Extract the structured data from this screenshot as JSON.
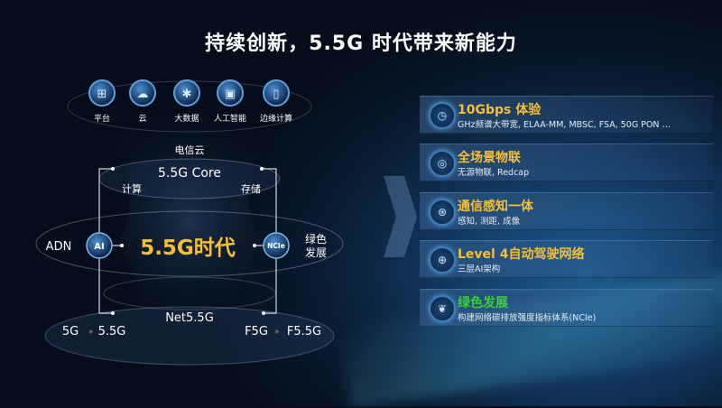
{
  "title": "持续创新，5.5G 时代带来新能力",
  "colors": {
    "accent_yellow": "#f5c030",
    "green": "#3ccf3c",
    "background": "#0a1a30"
  },
  "top_icons": [
    {
      "label": "平台",
      "icon": "platform-network-icon"
    },
    {
      "label": "云",
      "icon": "cloud-icon"
    },
    {
      "label": "大数据",
      "icon": "big-data-icon"
    },
    {
      "label": "人工智能",
      "icon": "ai-chip-icon"
    },
    {
      "label": "边缘计算",
      "icon": "edge-computing-icon"
    }
  ],
  "diagram": {
    "cloud_label": "电信云",
    "core": "5.5G Core",
    "compute": "计算",
    "storage": "存储",
    "adn": "ADN",
    "ai_badge": "AI",
    "era": "5.5G时代",
    "ncie_badge": "NCIe",
    "green_line1": "绿色",
    "green_line2": "发展",
    "net": "Net5.5G",
    "left_from": "5G",
    "left_to": "5.5G",
    "right_from": "F5G",
    "right_to": "F5.5G"
  },
  "capabilities": [
    {
      "title": "10Gbps 体验",
      "desc": "GHz频谱大带宽, ELAA-MM, MBSC, FSA, 50G PON …",
      "icon": "speedometer-icon",
      "color": "#f5c030"
    },
    {
      "title": "全场景物联",
      "desc": "无源物联, Redcap",
      "icon": "iot-icon",
      "color": "#f5c030"
    },
    {
      "title": "通信感知一体",
      "desc": "感知, 测距, 成像",
      "icon": "sensing-icon",
      "color": "#f5c030"
    },
    {
      "title": "Level 4自动驾驶网络",
      "desc": "三层AI架构",
      "icon": "globe-network-icon",
      "color": "#f5c030"
    },
    {
      "title": "绿色发展",
      "desc": "构建网络碳排放强度指标体系(NCIe)",
      "icon": "leaf-icon",
      "color": "#3ccf3c"
    }
  ]
}
